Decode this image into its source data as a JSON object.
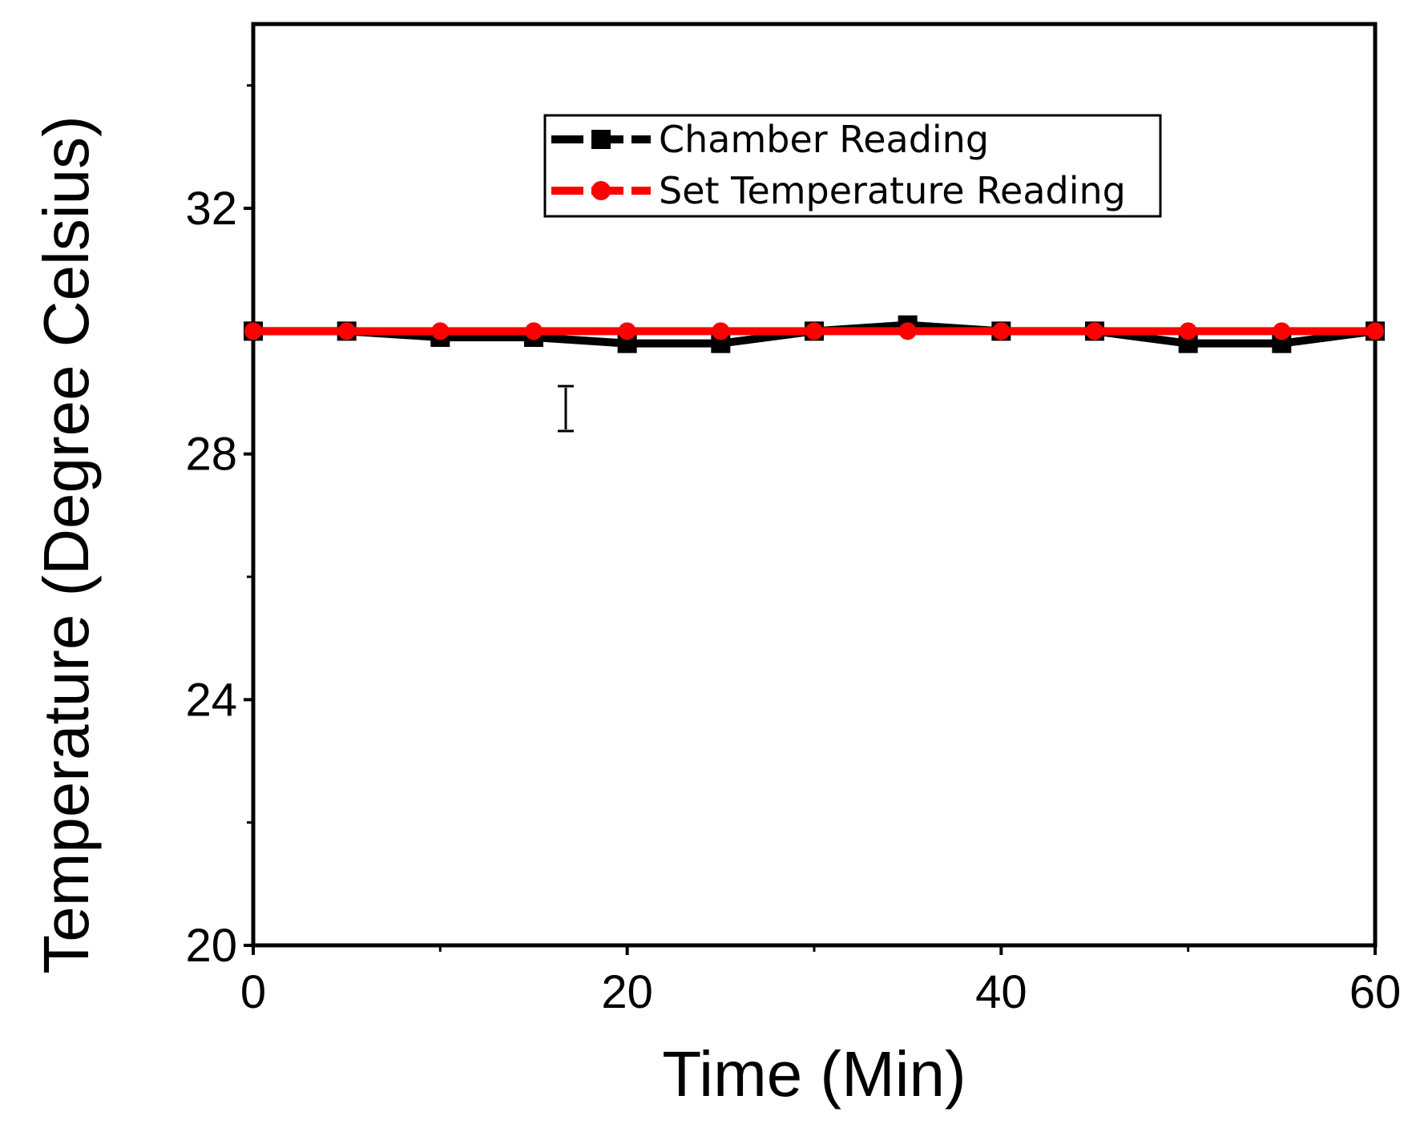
{
  "chart_data": {
    "type": "line",
    "title": "",
    "xlabel": "Time (Min)",
    "ylabel": "Temperature (Degree Celsius)",
    "xlim": [
      0,
      60
    ],
    "ylim": [
      20,
      35
    ],
    "x_ticks": [
      0,
      20,
      40,
      60
    ],
    "x_tick_labels": [
      "0",
      "20",
      "40",
      "60"
    ],
    "x_minor_ticks": [
      10,
      30,
      50
    ],
    "y_ticks": [
      20,
      24,
      28,
      32
    ],
    "y_tick_labels": [
      "20",
      "24",
      "28",
      "32"
    ],
    "y_minor_ticks": [
      22,
      26,
      30,
      34
    ],
    "grid": false,
    "legend_position": "top-right",
    "x": [
      0,
      5,
      10,
      15,
      20,
      25,
      30,
      35,
      40,
      45,
      50,
      55,
      60
    ],
    "series": [
      {
        "name": "Chamber Reading",
        "color": "#000000",
        "marker": "square",
        "values": [
          30.0,
          30.0,
          29.9,
          29.9,
          29.8,
          29.8,
          30.0,
          30.1,
          30.0,
          30.0,
          29.8,
          29.8,
          30.0
        ]
      },
      {
        "name": "Set Temperature Reading",
        "color": "#ff0000",
        "marker": "circle",
        "values": [
          30.0,
          30.0,
          30.0,
          30.0,
          30.0,
          30.0,
          30.0,
          30.0,
          30.0,
          30.0,
          30.0,
          30.0,
          30.0
        ]
      }
    ]
  }
}
